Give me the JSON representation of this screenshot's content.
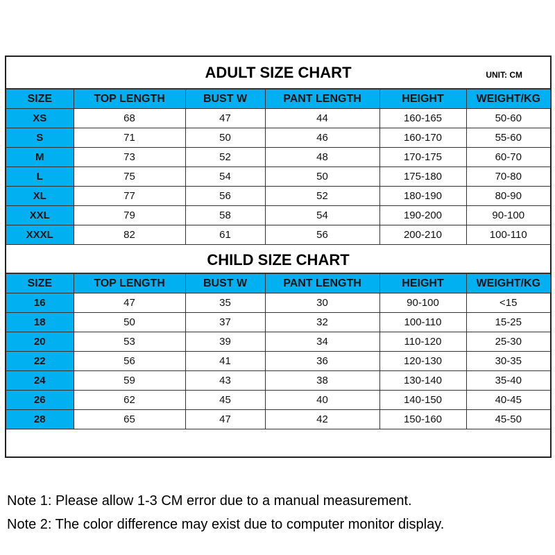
{
  "adult": {
    "title": "ADULT SIZE CHART",
    "unit": "UNIT: CM",
    "headers": [
      "SIZE",
      "TOP LENGTH",
      "BUST W",
      "PANT LENGTH",
      "HEIGHT",
      "WEIGHT/KG"
    ],
    "rows": [
      [
        "XS",
        "68",
        "47",
        "44",
        "160-165",
        "50-60"
      ],
      [
        "S",
        "71",
        "50",
        "46",
        "160-170",
        "55-60"
      ],
      [
        "M",
        "73",
        "52",
        "48",
        "170-175",
        "60-70"
      ],
      [
        "L",
        "75",
        "54",
        "50",
        "175-180",
        "70-80"
      ],
      [
        "XL",
        "77",
        "56",
        "52",
        "180-190",
        "80-90"
      ],
      [
        "XXL",
        "79",
        "58",
        "54",
        "190-200",
        "90-100"
      ],
      [
        "XXXL",
        "82",
        "61",
        "56",
        "200-210",
        "100-110"
      ]
    ]
  },
  "child": {
    "title": "CHILD SIZE CHART",
    "headers": [
      "SIZE",
      "TOP LENGTH",
      "BUST W",
      "PANT LENGTH",
      "HEIGHT",
      "WEIGHT/KG"
    ],
    "rows": [
      [
        "16",
        "47",
        "35",
        "30",
        "90-100",
        "<15"
      ],
      [
        "18",
        "50",
        "37",
        "32",
        "100-110",
        "15-25"
      ],
      [
        "20",
        "53",
        "39",
        "34",
        "110-120",
        "25-30"
      ],
      [
        "22",
        "56",
        "41",
        "36",
        "120-130",
        "30-35"
      ],
      [
        "24",
        "59",
        "43",
        "38",
        "130-140",
        "35-40"
      ],
      [
        "26",
        "62",
        "45",
        "40",
        "140-150",
        "40-45"
      ],
      [
        "28",
        "65",
        "47",
        "42",
        "150-160",
        "45-50"
      ]
    ]
  },
  "notes": [
    "Note 1: Please allow 1-3 CM error due to a manual measurement.",
    "Note 2: The color difference may exist due to computer monitor display."
  ],
  "colors": {
    "header": "#00b0f0"
  }
}
